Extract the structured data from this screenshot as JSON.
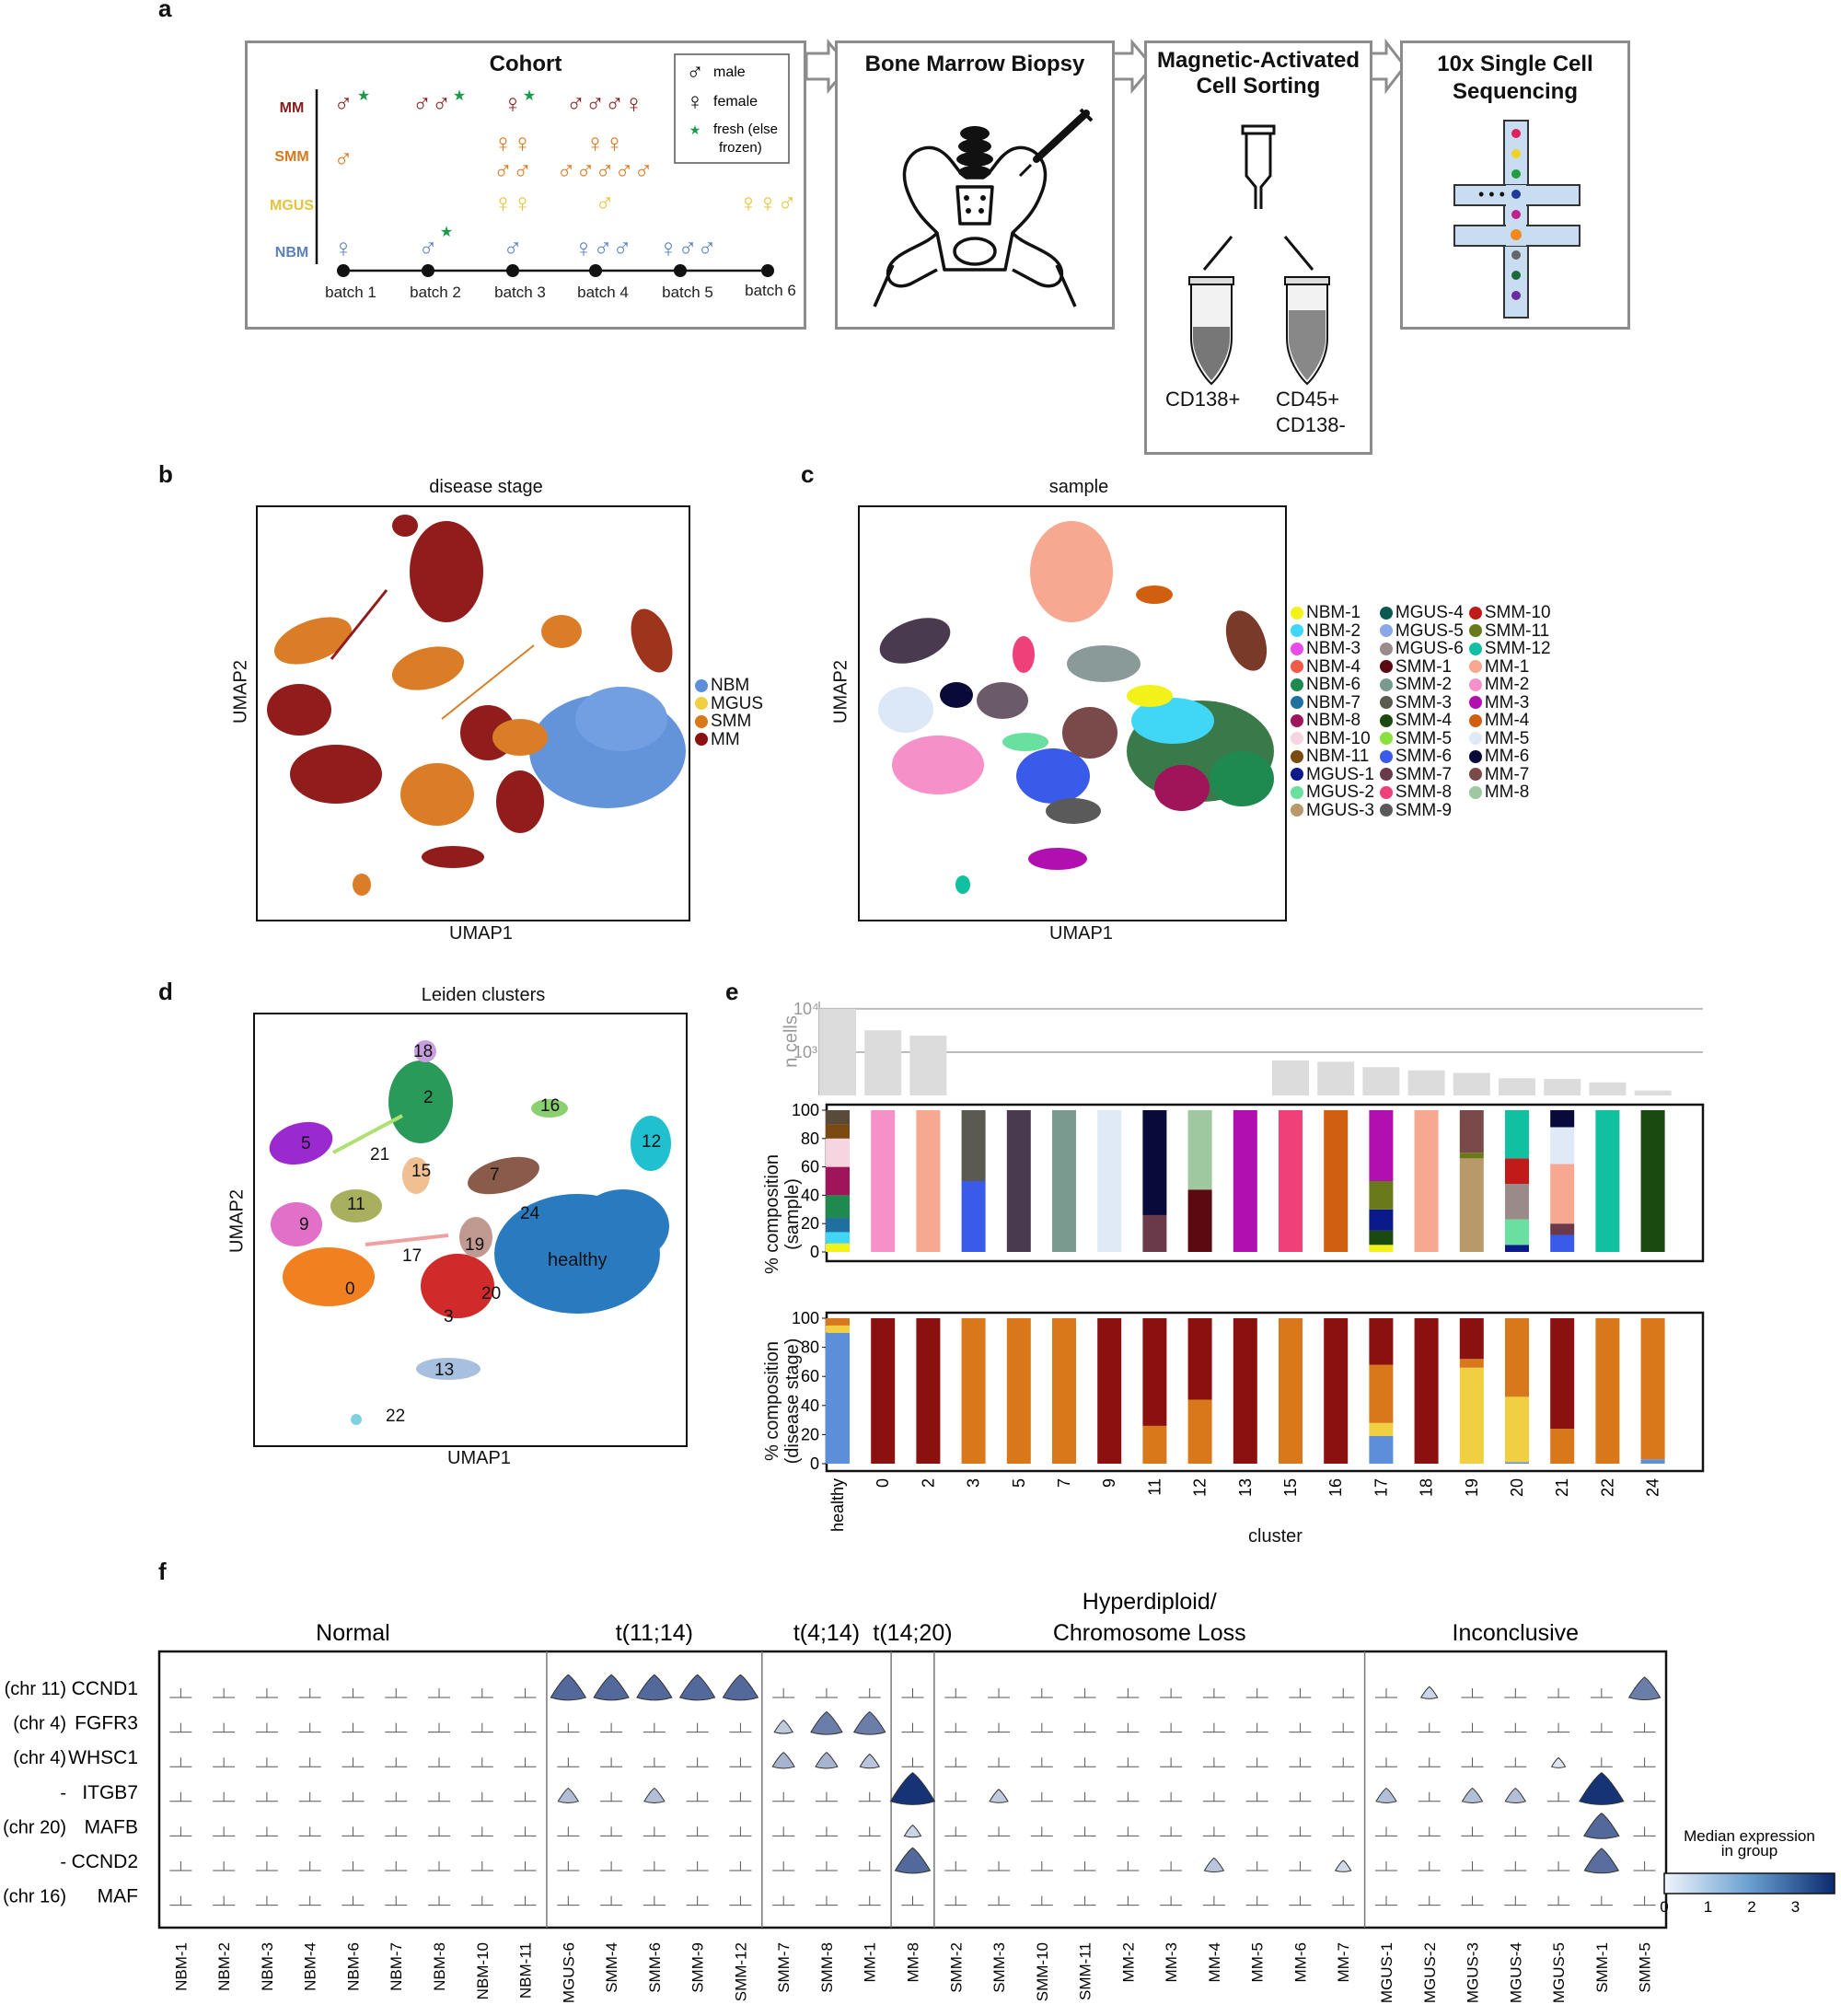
{
  "panels": {
    "a": {
      "label": "a",
      "cohort": {
        "title": "Cohort",
        "stages": [
          {
            "name": "MM",
            "color": "#8b1a1a"
          },
          {
            "name": "SMM",
            "color": "#d9771b"
          },
          {
            "name": "MGUS",
            "color": "#e8c23a"
          },
          {
            "name": "NBM",
            "color": "#5b80c0"
          }
        ],
        "batches": [
          "batch 1",
          "batch 2",
          "batch 3",
          "batch 4",
          "batch 5",
          "batch 6"
        ],
        "legend": {
          "male": "male",
          "female": "female",
          "fresh": "fresh (else frozen)"
        },
        "cells": [
          {
            "row": "MM",
            "batch": 1,
            "symbols": "♂",
            "fresh": true
          },
          {
            "row": "MM",
            "batch": 2,
            "symbols": "♂♂",
            "fresh": true
          },
          {
            "row": "MM",
            "batch": 3,
            "symbols": "♀",
            "fresh": true
          },
          {
            "row": "MM",
            "batch": 4,
            "symbols": "♂♂♂♀",
            "fresh": false
          },
          {
            "row": "SMM",
            "batch": 1,
            "symbols": "♂",
            "fresh": false
          },
          {
            "row": "SMM",
            "batch": 3,
            "symbols": "♀♀ / ♂♂",
            "fresh": false
          },
          {
            "row": "SMM",
            "batch": 4,
            "symbols": "♀♀ / ♂♂♂♂♂",
            "fresh": false
          },
          {
            "row": "MGUS",
            "batch": 3,
            "symbols": "♀♀",
            "fresh": false
          },
          {
            "row": "MGUS",
            "batch": 4,
            "symbols": "♂",
            "fresh": false
          },
          {
            "row": "MGUS",
            "batch": 6,
            "symbols": "♀♀♂",
            "fresh": false
          },
          {
            "row": "NBM",
            "batch": 1,
            "symbols": "♀",
            "fresh": false
          },
          {
            "row": "NBM",
            "batch": 2,
            "symbols": "♂",
            "fresh": true
          },
          {
            "row": "NBM",
            "batch": 3,
            "symbols": "♂",
            "fresh": false
          },
          {
            "row": "NBM",
            "batch": 4,
            "symbols": "♀♂♂",
            "fresh": false
          },
          {
            "row": "NBM",
            "batch": 5,
            "symbols": "♀♂♂",
            "fresh": false
          }
        ]
      },
      "biopsy": {
        "title": "Bone Marrow Biopsy"
      },
      "macs": {
        "title_1": "Magnetic-Activated",
        "title_2": "Cell Sorting",
        "tube_left": "CD138+",
        "tube_right_1": "CD45+",
        "tube_right_2": "CD138-"
      },
      "sequencing": {
        "title_1": "10x Single Cell",
        "title_2": "Sequencing",
        "dots": "• • •"
      }
    },
    "b": {
      "label": "b",
      "title": "disease stage",
      "xlabel": "UMAP1",
      "ylabel": "UMAP2",
      "legend": [
        {
          "name": "NBM",
          "color": "#5b8fd9"
        },
        {
          "name": "MGUS",
          "color": "#f0d040"
        },
        {
          "name": "SMM",
          "color": "#d9771b"
        },
        {
          "name": "MM",
          "color": "#8b1010"
        }
      ]
    },
    "c": {
      "label": "c",
      "title": "sample",
      "xlabel": "UMAP1",
      "ylabel": "UMAP2",
      "legend_columns": [
        [
          {
            "name": "NBM-1",
            "color": "#f2f21a"
          },
          {
            "name": "NBM-2",
            "color": "#3fd7f5"
          },
          {
            "name": "NBM-3",
            "color": "#e64ce6"
          },
          {
            "name": "NBM-4",
            "color": "#f25a4a"
          },
          {
            "name": "NBM-6",
            "color": "#1e8a50"
          },
          {
            "name": "NBM-7",
            "color": "#1f6fa0"
          },
          {
            "name": "NBM-8",
            "color": "#a0145a"
          },
          {
            "name": "NBM-10",
            "color": "#f7d5e0"
          },
          {
            "name": "NBM-11",
            "color": "#7a4a10"
          },
          {
            "name": "MGUS-1",
            "color": "#0a1a8a"
          },
          {
            "name": "MGUS-2",
            "color": "#6ae0a0"
          },
          {
            "name": "MGUS-3",
            "color": "#b89a6a"
          }
        ],
        [
          {
            "name": "MGUS-4",
            "color": "#0a5a50"
          },
          {
            "name": "MGUS-5",
            "color": "#8aa8e8"
          },
          {
            "name": "MGUS-6",
            "color": "#9a8a8a"
          },
          {
            "name": "SMM-1",
            "color": "#5a0a10"
          },
          {
            "name": "SMM-2",
            "color": "#7a9a90"
          },
          {
            "name": "SMM-3",
            "color": "#5a5a50"
          },
          {
            "name": "SMM-4",
            "color": "#1a4a10"
          },
          {
            "name": "SMM-5",
            "color": "#8ae040"
          },
          {
            "name": "SMM-6",
            "color": "#3a5aea"
          },
          {
            "name": "SMM-7",
            "color": "#6a3a4a"
          },
          {
            "name": "SMM-8",
            "color": "#f0407a"
          },
          {
            "name": "SMM-9",
            "color": "#5a5a5a"
          }
        ],
        [
          {
            "name": "SMM-10",
            "color": "#c01a1a"
          },
          {
            "name": "SMM-11",
            "color": "#6a7a1a"
          },
          {
            "name": "SMM-12",
            "color": "#10c0a0"
          },
          {
            "name": "MM-1",
            "color": "#f7a890"
          },
          {
            "name": "MM-2",
            "color": "#f590c8"
          },
          {
            "name": "MM-3",
            "color": "#b010b0"
          },
          {
            "name": "MM-4",
            "color": "#d06010"
          },
          {
            "name": "MM-5",
            "color": "#e0eaf7"
          },
          {
            "name": "MM-6",
            "color": "#0a0a3a"
          },
          {
            "name": "MM-7",
            "color": "#7a4a4a"
          },
          {
            "name": "MM-8",
            "color": "#a0c8a0"
          }
        ]
      ]
    },
    "d": {
      "label": "d",
      "title": "Leiden clusters",
      "xlabel": "UMAP1",
      "ylabel": "UMAP2",
      "clusters": [
        "18",
        "2",
        "16",
        "12",
        "5",
        "21",
        "15",
        "7",
        "11",
        "9",
        "24",
        "17",
        "19",
        "healthy",
        "0",
        "20",
        "3",
        "13",
        "22"
      ]
    },
    "e": {
      "label": "e",
      "xlabel": "cluster",
      "top_ylabel": "n cells",
      "mid_ylabel_1": "% composition",
      "mid_ylabel_2": "(sample)",
      "bot_ylabel_1": "% composition",
      "bot_ylabel_2": "(disease stage)",
      "yticks": [
        "0",
        "20",
        "40",
        "60",
        "80",
        "100"
      ],
      "log_ticks": [
        "10³",
        "10⁴"
      ]
    },
    "f": {
      "label": "f",
      "ylegend_title_1": "Median expression",
      "ylegend_title_2": "in group",
      "colorbar_ticks": [
        "0",
        "1",
        "2",
        "3"
      ],
      "groups": [
        {
          "label": "Normal",
          "start": 0,
          "end": 9
        },
        {
          "label": "t(11;14)",
          "start": 9,
          "end": 14
        },
        {
          "label": "t(4;14)",
          "start": 14,
          "end": 17
        },
        {
          "label": "t(14;20)",
          "start": 17,
          "end": 18
        },
        {
          "label_1": "Hyperdiploid/",
          "label_2": "Chromosome Loss",
          "start": 18,
          "end": 28
        },
        {
          "label": "Inconclusive",
          "start": 28,
          "end": 35
        }
      ],
      "genes": [
        {
          "chr": "(chr 11)",
          "name": "CCND1"
        },
        {
          "chr": "(chr 4)",
          "name": "FGFR3"
        },
        {
          "chr": "(chr 4)",
          "name": "WHSC1"
        },
        {
          "chr": "-",
          "name": "ITGB7"
        },
        {
          "chr": "(chr 20)",
          "name": "MAFB"
        },
        {
          "chr": "-",
          "name": "CCND2"
        },
        {
          "chr": "(chr 16)",
          "name": "MAF"
        }
      ],
      "samples": [
        "NBM-1",
        "NBM-2",
        "NBM-3",
        "NBM-4",
        "NBM-6",
        "NBM-7",
        "NBM-8",
        "NBM-10",
        "NBM-11",
        "MGUS-6",
        "SMM-4",
        "SMM-6",
        "SMM-9",
        "SMM-12",
        "SMM-7",
        "SMM-8",
        "MM-1",
        "MM-8",
        "SMM-2",
        "SMM-3",
        "SMM-10",
        "SMM-11",
        "MM-2",
        "MM-3",
        "MM-4",
        "MM-5",
        "MM-6",
        "MM-7",
        "MGUS-1",
        "MGUS-2",
        "MGUS-3",
        "MGUS-4",
        "MGUS-5",
        "SMM-1",
        "SMM-5"
      ]
    }
  },
  "chart_data": [
    {
      "type": "bar",
      "title": "",
      "ylabel": "n cells",
      "yscale": "log",
      "categories": [
        "healthy",
        "0",
        "2",
        "3",
        "5",
        "7",
        "9",
        "11",
        "12",
        "13",
        "15",
        "16",
        "17",
        "18",
        "19",
        "20",
        "21",
        "22",
        "24"
      ],
      "values": [
        10000,
        3200,
        2400,
        0,
        0,
        0,
        0,
        0,
        0,
        0,
        640,
        600,
        450,
        380,
        330,
        250,
        240,
        200,
        130
      ]
    },
    {
      "type": "bar",
      "ylabel": "% composition (disease stage)",
      "categories": [
        "healthy",
        "0",
        "2",
        "3",
        "5",
        "7",
        "9",
        "11",
        "12",
        "13",
        "15",
        "16",
        "17",
        "18",
        "19",
        "20",
        "21",
        "22",
        "24"
      ],
      "ylim": [
        0,
        100
      ],
      "series": [
        {
          "name": "NBM",
          "values": [
            90,
            0,
            0,
            0,
            0,
            0,
            0,
            0,
            0,
            0,
            0,
            0,
            19,
            0,
            0,
            1,
            0,
            0,
            3
          ]
        },
        {
          "name": "MGUS",
          "values": [
            5,
            0,
            0,
            0,
            0,
            0,
            0,
            0,
            0,
            0,
            0,
            0,
            9,
            0,
            66,
            45,
            0,
            0,
            0
          ]
        },
        {
          "name": "SMM",
          "values": [
            5,
            0,
            0,
            100,
            100,
            100,
            0,
            26,
            44,
            0,
            100,
            0,
            40,
            0,
            6,
            54,
            24,
            100,
            97
          ]
        },
        {
          "name": "MM",
          "values": [
            0,
            100,
            100,
            0,
            0,
            0,
            100,
            74,
            56,
            100,
            0,
            100,
            32,
            100,
            28,
            0,
            76,
            0,
            0
          ]
        }
      ]
    }
  ]
}
